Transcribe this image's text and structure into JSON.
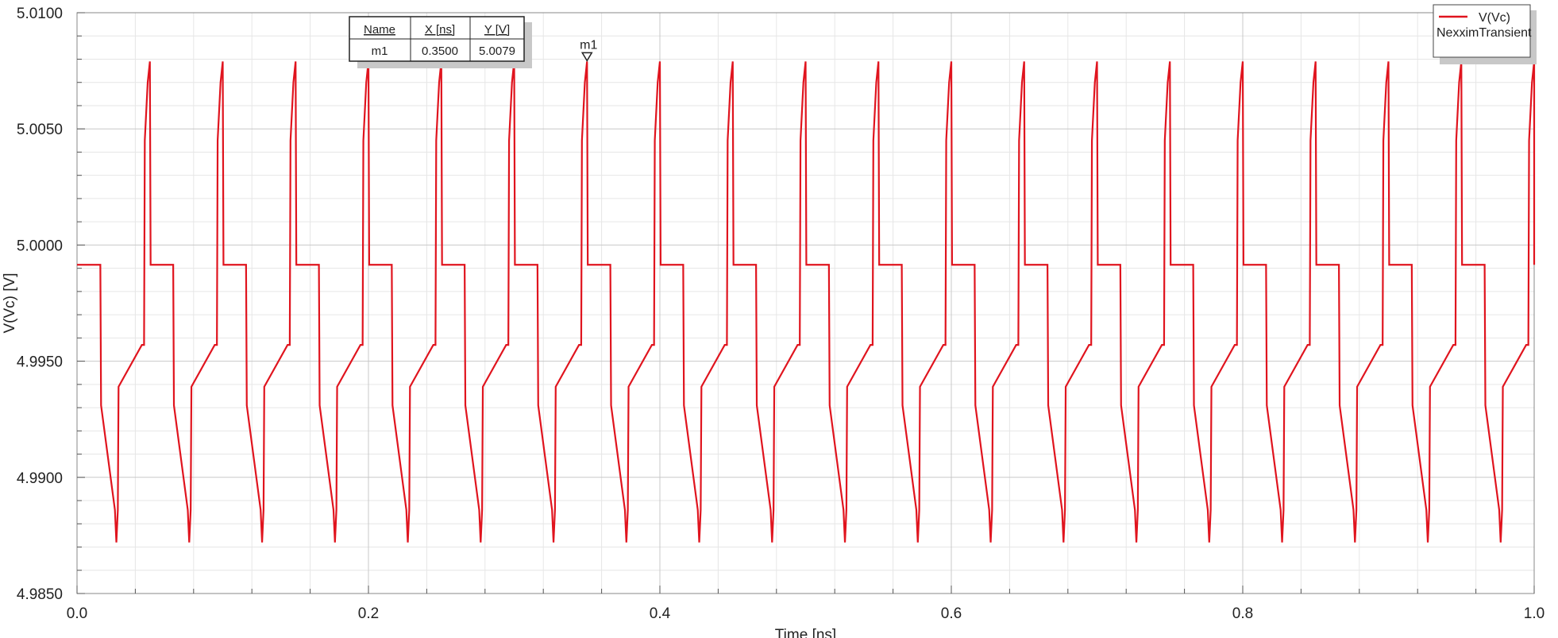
{
  "chart_data": {
    "type": "line",
    "xlabel": "Time [ns]",
    "ylabel": "V(Vc) [V]",
    "xlim": [
      0.0,
      1.0
    ],
    "ylim": [
      4.985,
      5.01
    ],
    "x_ticks": [
      "0.0",
      "0.2",
      "0.4",
      "0.6",
      "0.8",
      "1.0"
    ],
    "y_ticks": [
      "5.0100",
      "5.0050",
      "5.0000",
      "4.9950",
      "4.9900",
      "4.9850"
    ],
    "grid": true,
    "legend": {
      "placement": "top-right",
      "entries": [
        {
          "name": "V(Vc)",
          "subtitle": "NexximTransient",
          "color": "#e0141e"
        }
      ]
    },
    "series": [
      {
        "name": "V(Vc)",
        "color": "#e0141e",
        "period_ns": 0.05,
        "points_one_period": [
          [
            0.0,
            4.99915
          ],
          [
            0.016,
            4.99915
          ],
          [
            0.0165,
            4.9931
          ],
          [
            0.026,
            4.9886
          ],
          [
            0.027,
            4.9872
          ],
          [
            0.028,
            4.9886
          ],
          [
            0.0285,
            4.9939
          ],
          [
            0.0445,
            4.9957
          ],
          [
            0.046,
            4.9957
          ],
          [
            0.0465,
            5.0045
          ],
          [
            0.0485,
            5.007
          ],
          [
            0.05,
            5.0079
          ],
          [
            0.0505,
            4.99915
          ],
          [
            0.066,
            4.99915
          ]
        ]
      }
    ],
    "marker": {
      "label": "m1",
      "x": 0.35,
      "y": 5.0079,
      "table": {
        "headers": [
          "Name",
          "X [ns]",
          "Y [V]"
        ],
        "rows": [
          [
            "m1",
            "0.3500",
            "5.0079"
          ]
        ]
      }
    }
  }
}
